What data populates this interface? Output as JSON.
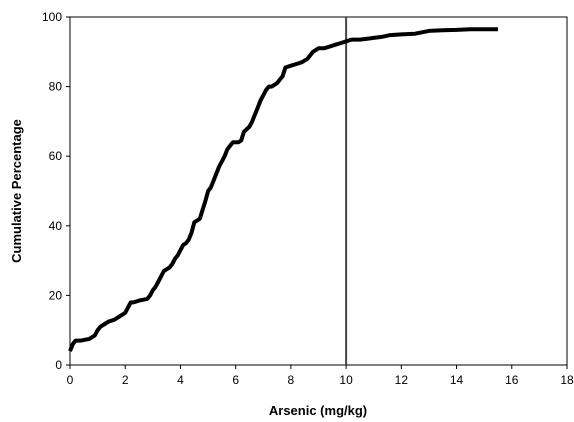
{
  "chart_data": {
    "type": "line",
    "xlabel": "Arsenic (mg/kg)",
    "ylabel": "Cumulative Percentage",
    "xlim": [
      0,
      18
    ],
    "ylim": [
      0,
      100
    ],
    "x_ticks": [
      0,
      2,
      4,
      6,
      8,
      10,
      12,
      14,
      16,
      18
    ],
    "y_ticks": [
      0,
      20,
      40,
      60,
      80,
      100
    ],
    "x_tick_labels": [
      "0",
      "2",
      "4",
      "6",
      "8",
      "10",
      "12",
      "14",
      "16",
      "18"
    ],
    "y_tick_labels": [
      "0",
      "20",
      "40",
      "60",
      "80",
      "100"
    ],
    "grid": false,
    "legend": "none",
    "line_color": "#000000",
    "reference_line": {
      "x": 10,
      "color": "#444444"
    },
    "series": [
      {
        "x": [
          0.0,
          0.05,
          0.1,
          0.2,
          0.4,
          0.7,
          0.9,
          1.0,
          1.1,
          1.2,
          1.4,
          1.6,
          1.8,
          2.0,
          2.1,
          2.2,
          2.3,
          2.5,
          2.8,
          2.9,
          3.0,
          3.1,
          3.2,
          3.3,
          3.4,
          3.5,
          3.6,
          3.7,
          3.8,
          3.9,
          4.0,
          4.1,
          4.2,
          4.3,
          4.4,
          4.5,
          4.6,
          4.7,
          4.8,
          4.9,
          5.0,
          5.1,
          5.2,
          5.3,
          5.4,
          5.5,
          5.6,
          5.7,
          5.8,
          5.9,
          6.0,
          6.1,
          6.2,
          6.3,
          6.5,
          6.6,
          6.7,
          6.8,
          6.9,
          7.0,
          7.1,
          7.2,
          7.3,
          7.4,
          7.5,
          7.6,
          7.7,
          7.8,
          8.0,
          8.2,
          8.4,
          8.6,
          8.7,
          8.8,
          9.0,
          9.2,
          9.4,
          9.6,
          9.8,
          10.0,
          10.2,
          10.5,
          10.8,
          11.0,
          11.3,
          11.6,
          12.0,
          12.5,
          13.0,
          13.5,
          14.0,
          14.5,
          15.0,
          15.5
        ],
        "y": [
          4,
          5,
          6,
          7,
          7,
          7.5,
          8.5,
          10,
          11,
          11.5,
          12.5,
          13,
          14,
          15,
          16.5,
          18,
          18,
          18.5,
          19,
          20,
          21.5,
          22.5,
          24,
          25.5,
          27,
          27.5,
          28,
          29,
          30.5,
          31.5,
          33,
          34.5,
          35,
          36,
          38,
          41,
          41.5,
          42,
          44.5,
          47,
          50,
          51,
          53,
          55,
          57,
          58.5,
          60,
          62,
          63,
          64,
          64,
          64,
          64.5,
          67,
          68.5,
          70,
          72,
          74,
          76,
          77.5,
          79,
          80,
          80,
          80.5,
          81,
          82,
          83,
          85.5,
          86,
          86.5,
          87,
          88,
          89,
          90,
          91,
          91,
          91.5,
          92,
          92.5,
          93,
          93.5,
          93.5,
          93.8,
          94,
          94.3,
          94.8,
          95,
          95.2,
          96,
          96.2,
          96.3,
          96.5,
          96.5,
          96.5
        ]
      }
    ]
  }
}
